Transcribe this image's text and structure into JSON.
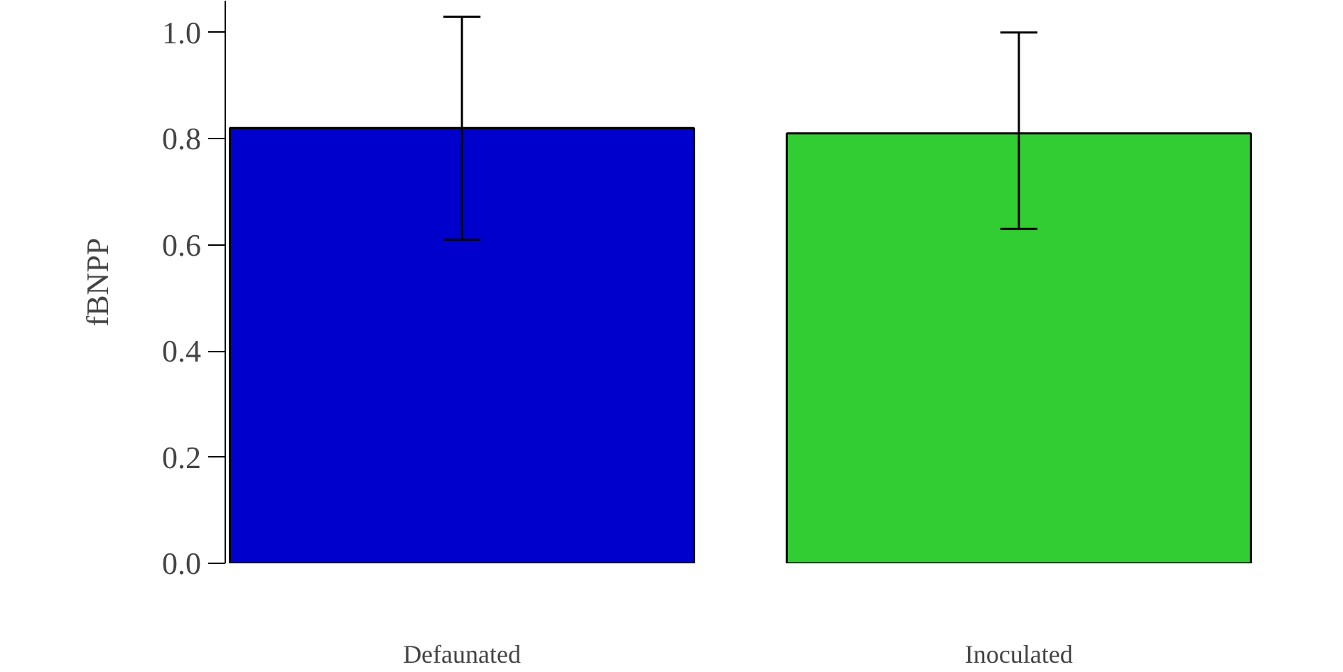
{
  "chart_data": {
    "type": "bar",
    "ylabel": "fBNPP",
    "categories": [
      "Defaunated",
      "Inoculated"
    ],
    "values": [
      0.82,
      0.81
    ],
    "colors": [
      "#0000cd",
      "#32cd32"
    ],
    "errors": [
      [
        0.61,
        1.03
      ],
      [
        0.63,
        1.0
      ]
    ],
    "ylim": [
      0,
      1.06
    ],
    "yticks": [
      {
        "value": 0,
        "label": "0.0"
      },
      {
        "value": 0.2,
        "label": "0.2"
      },
      {
        "value": 0.4,
        "label": "0.4"
      },
      {
        "value": 0.6,
        "label": "0.6"
      },
      {
        "value": 0.8,
        "label": "0.8"
      },
      {
        "value": 1,
        "label": "1.0"
      }
    ],
    "grid": false
  }
}
